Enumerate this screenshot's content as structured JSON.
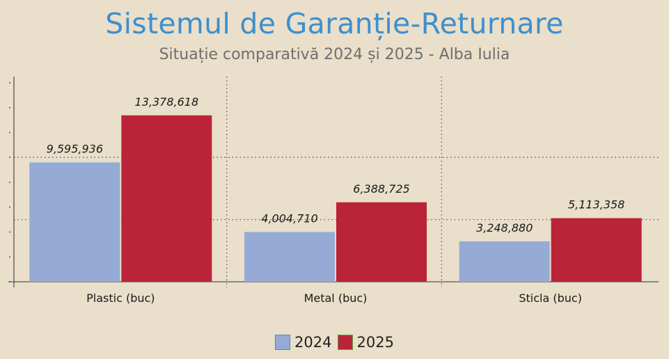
{
  "chart_data": {
    "type": "bar",
    "title": "Sistemul de Garanție-Returnare",
    "subtitle": "Situație comparativă 2024 și 2025  - Alba Iulia",
    "categories": [
      "Plastic (buc)",
      "Metal (buc)",
      "Sticla (buc)"
    ],
    "series": [
      {
        "name": "2024",
        "values": [
          9595936,
          4004710,
          3248880
        ],
        "labels": [
          "9,595,936",
          "4,004,710",
          "3,248,880"
        ],
        "color": "#95abd6",
        "border": "#3d8fcf"
      },
      {
        "name": "2025",
        "values": [
          13378618,
          6388725,
          5113358
        ],
        "labels": [
          "13,378,618",
          "6,388,725",
          "5,113,358"
        ],
        "color": "#bb2338",
        "border": "#56a848"
      }
    ],
    "ylim": [
      0,
      16500000
    ],
    "grid": true,
    "legend": "bottom"
  }
}
